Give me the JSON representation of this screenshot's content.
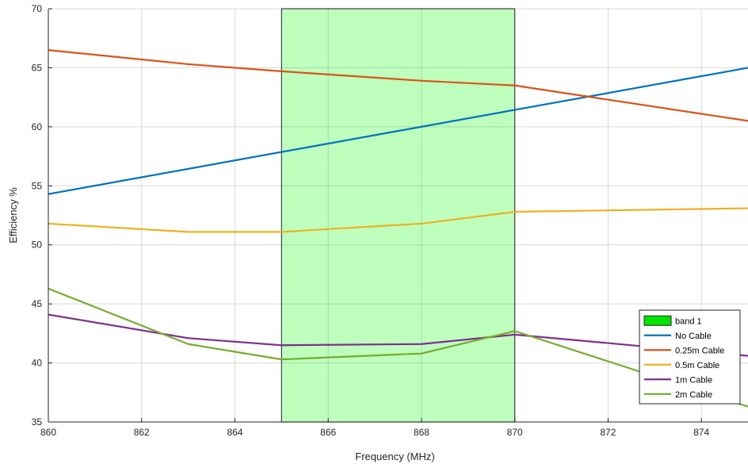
{
  "chart_data": {
    "type": "line",
    "title": "",
    "xlabel": "Frequency (MHz)",
    "ylabel": "Efficiency %",
    "xlim": [
      860,
      875
    ],
    "ylim": [
      35,
      70
    ],
    "xticks": [
      "860",
      "862",
      "864",
      "866",
      "868",
      "870",
      "872",
      "874"
    ],
    "yticks": [
      "35",
      "40",
      "45",
      "50",
      "55",
      "60",
      "65",
      "70"
    ],
    "grid": true,
    "legend_position": "bottom-right",
    "band": {
      "name": "band 1",
      "x_start": 865,
      "x_end": 870,
      "color": "#b3ffb3",
      "legend_color": "#00e600"
    },
    "series": [
      {
        "name": "No Cable",
        "color": "#0072bd",
        "x": [
          860,
          875
        ],
        "y": [
          54.3,
          65.0
        ]
      },
      {
        "name": "0.25m Cable",
        "color": "#d95319",
        "x": [
          860,
          863,
          865,
          868,
          870,
          875
        ],
        "y": [
          66.5,
          65.3,
          64.7,
          63.9,
          63.5,
          60.5
        ]
      },
      {
        "name": "0.5m Cable",
        "color": "#edb120",
        "x": [
          860,
          863,
          865,
          868,
          870,
          875
        ],
        "y": [
          51.8,
          51.1,
          51.1,
          51.8,
          52.8,
          53.1
        ]
      },
      {
        "name": "1m Cable",
        "color": "#7e2f8e",
        "x": [
          860,
          863,
          865,
          868,
          870,
          875
        ],
        "y": [
          44.1,
          42.1,
          41.5,
          41.6,
          42.4,
          40.6
        ]
      },
      {
        "name": "2m Cable",
        "color": "#77ac30",
        "x": [
          860,
          863,
          865,
          868,
          870,
          875
        ],
        "y": [
          46.3,
          41.6,
          40.3,
          40.8,
          42.7,
          36.3
        ]
      }
    ]
  }
}
